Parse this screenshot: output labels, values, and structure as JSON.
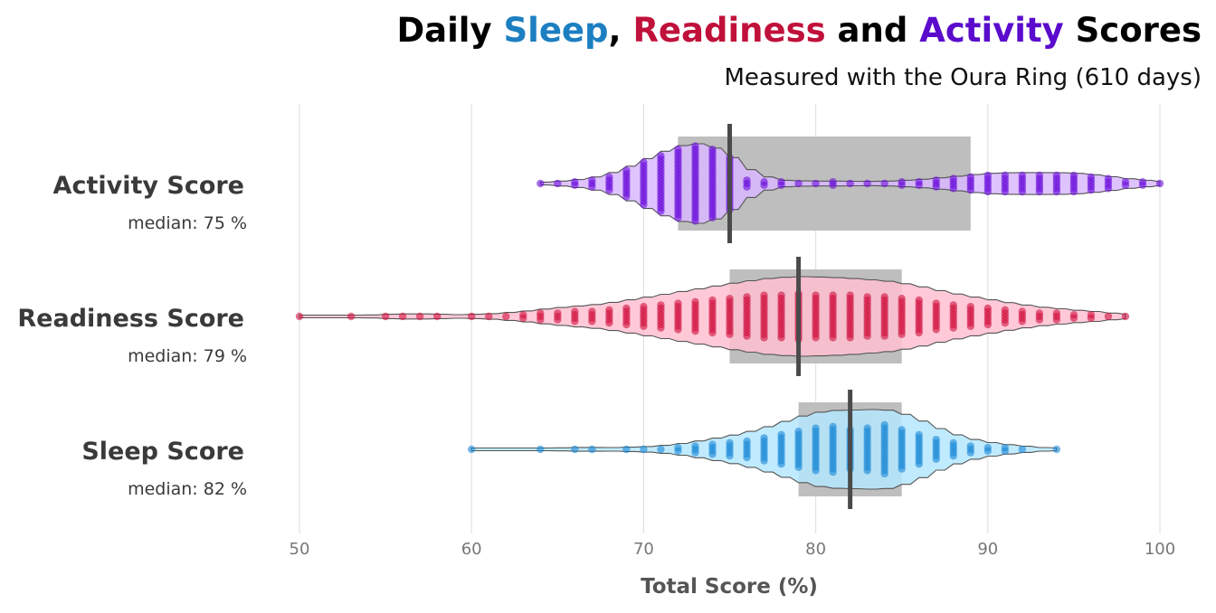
{
  "title_parts": [
    {
      "text": "Daily ",
      "color": "#000000"
    },
    {
      "text": "Sleep",
      "color": "#1C7FC1"
    },
    {
      "text": ", ",
      "color": "#000000"
    },
    {
      "text": "Readiness",
      "color": "#C0113B"
    },
    {
      "text": " and ",
      "color": "#000000"
    },
    {
      "text": "Activity",
      "color": "#5A0BCC"
    },
    {
      "text": " Scores",
      "color": "#000000"
    }
  ],
  "subtitle": "Measured with the Oura Ring (610 days)",
  "colors": {
    "activity_fill": "#D9B8FF",
    "activity_point": "#6A0EDB",
    "readiness_fill": "#FFBFD1",
    "readiness_point": "#D0103F",
    "sleep_fill": "#B5E8FF",
    "sleep_point": "#1B88D6",
    "iqr_box": "#BEBEBE",
    "median_line": "#4A4A4A",
    "grid": "#E2E2E2",
    "text_dark": "#3A3A3A",
    "text_axis": "#777777"
  },
  "chart_data": {
    "type": "violin",
    "xlabel": "Total Score (%)",
    "xlim": [
      50,
      100
    ],
    "xticks": [
      50,
      60,
      70,
      80,
      90,
      100
    ],
    "grid": true,
    "series": [
      {
        "name": "Activity Score",
        "median_label": "median: 75 %",
        "median": 75,
        "q1": 72,
        "q3": 89,
        "min": 64,
        "max": 100,
        "counts": [
          [
            64,
            1
          ],
          [
            65,
            1
          ],
          [
            66,
            2
          ],
          [
            67,
            3
          ],
          [
            68,
            5
          ],
          [
            69,
            9
          ],
          [
            70,
            14
          ],
          [
            71,
            18
          ],
          [
            72,
            22
          ],
          [
            73,
            24
          ],
          [
            74,
            22
          ],
          [
            75,
            17
          ],
          [
            76,
            3
          ],
          [
            77,
            2
          ],
          [
            78,
            2
          ],
          [
            79,
            1
          ],
          [
            80,
            1
          ],
          [
            81,
            2
          ],
          [
            82,
            1
          ],
          [
            83,
            1
          ],
          [
            84,
            1
          ],
          [
            85,
            2
          ],
          [
            86,
            2
          ],
          [
            87,
            3
          ],
          [
            88,
            4
          ],
          [
            89,
            5
          ],
          [
            90,
            6
          ],
          [
            91,
            6
          ],
          [
            92,
            6
          ],
          [
            93,
            6
          ],
          [
            94,
            6
          ],
          [
            95,
            6
          ],
          [
            96,
            5
          ],
          [
            97,
            4
          ],
          [
            98,
            2
          ],
          [
            99,
            2
          ],
          [
            100,
            1
          ]
        ]
      },
      {
        "name": "Readiness Score",
        "median_label": "median: 79 %",
        "median": 79,
        "q1": 75,
        "q3": 85,
        "min": 50,
        "max": 98,
        "counts": [
          [
            50,
            1
          ],
          [
            53,
            1
          ],
          [
            55,
            1
          ],
          [
            56,
            1
          ],
          [
            57,
            1
          ],
          [
            58,
            1
          ],
          [
            60,
            1
          ],
          [
            61,
            1
          ],
          [
            62,
            1
          ],
          [
            63,
            2
          ],
          [
            64,
            3
          ],
          [
            65,
            3
          ],
          [
            66,
            4
          ],
          [
            67,
            4
          ],
          [
            68,
            5
          ],
          [
            69,
            6
          ],
          [
            70,
            7
          ],
          [
            71,
            8
          ],
          [
            72,
            9
          ],
          [
            73,
            10
          ],
          [
            74,
            11
          ],
          [
            75,
            12
          ],
          [
            76,
            13
          ],
          [
            77,
            14
          ],
          [
            78,
            14
          ],
          [
            79,
            15
          ],
          [
            80,
            14
          ],
          [
            81,
            14
          ],
          [
            82,
            14
          ],
          [
            83,
            13
          ],
          [
            84,
            13
          ],
          [
            85,
            12
          ],
          [
            86,
            11
          ],
          [
            87,
            9
          ],
          [
            88,
            8
          ],
          [
            89,
            7
          ],
          [
            90,
            6
          ],
          [
            91,
            5
          ],
          [
            92,
            4
          ],
          [
            93,
            3
          ],
          [
            94,
            3
          ],
          [
            95,
            2
          ],
          [
            96,
            2
          ],
          [
            97,
            1
          ],
          [
            98,
            1
          ]
        ]
      },
      {
        "name": "Sleep Score",
        "median_label": "median: 82 %",
        "median": 82,
        "q1": 79,
        "q3": 85,
        "min": 60,
        "max": 94,
        "counts": [
          [
            60,
            1
          ],
          [
            64,
            1
          ],
          [
            66,
            1
          ],
          [
            67,
            1
          ],
          [
            69,
            1
          ],
          [
            70,
            1
          ],
          [
            71,
            1
          ],
          [
            72,
            2
          ],
          [
            73,
            3
          ],
          [
            74,
            4
          ],
          [
            75,
            5
          ],
          [
            76,
            6
          ],
          [
            77,
            8
          ],
          [
            78,
            10
          ],
          [
            79,
            12
          ],
          [
            80,
            14
          ],
          [
            81,
            15
          ],
          [
            82,
            13
          ],
          [
            83,
            14
          ],
          [
            84,
            16
          ],
          [
            85,
            13
          ],
          [
            86,
            10
          ],
          [
            87,
            7
          ],
          [
            88,
            5
          ],
          [
            89,
            3
          ],
          [
            90,
            2
          ],
          [
            91,
            2
          ],
          [
            92,
            1
          ],
          [
            94,
            1
          ]
        ]
      }
    ]
  }
}
